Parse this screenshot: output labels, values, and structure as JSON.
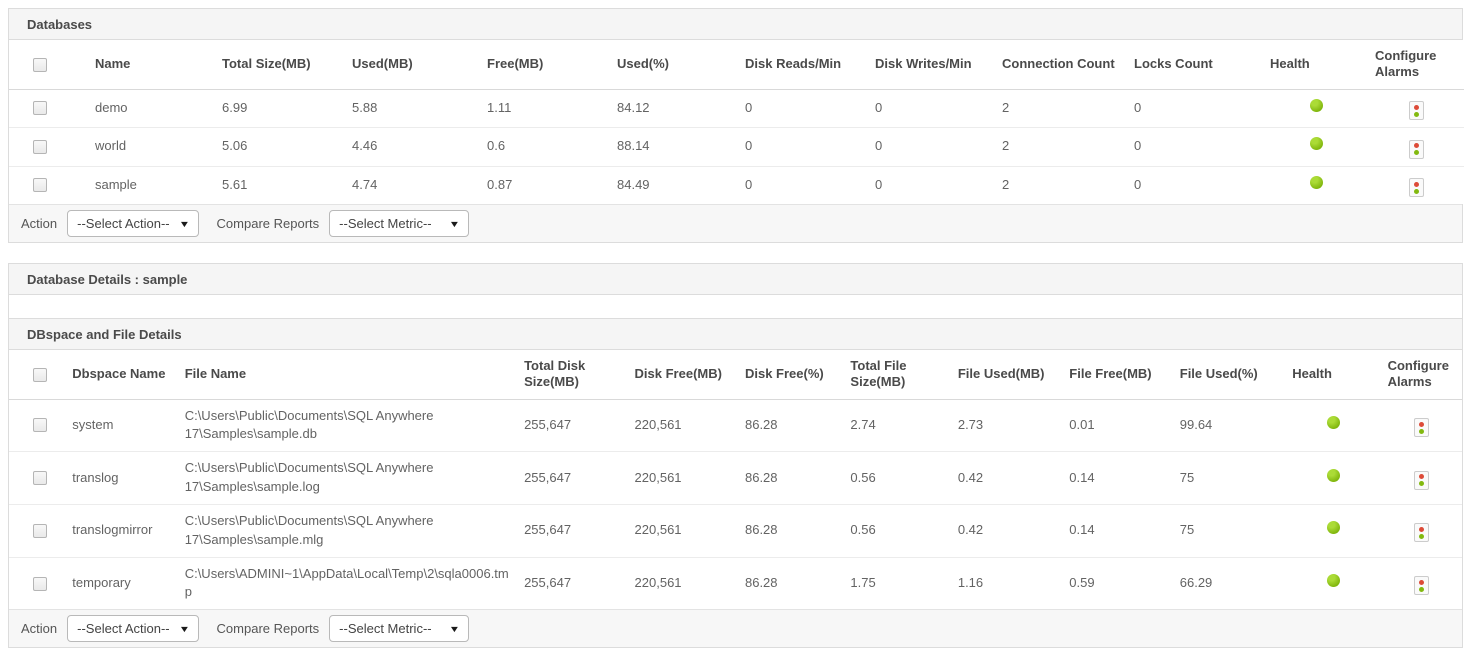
{
  "databases_panel": {
    "title": "Databases",
    "columns": [
      "Name",
      "Total Size(MB)",
      "Used(MB)",
      "Free(MB)",
      "Used(%)",
      "Disk Reads/Min",
      "Disk Writes/Min",
      "Connection Count",
      "Locks Count",
      "Health",
      "Configure Alarms"
    ],
    "rows": [
      {
        "name": "demo",
        "total_size": "6.99",
        "used": "5.88",
        "free": "1.11",
        "used_pct": "84.12",
        "disk_reads": "0",
        "disk_writes": "0",
        "connection_count": "2",
        "locks_count": "0",
        "health": "green"
      },
      {
        "name": "world",
        "total_size": "5.06",
        "used": "4.46",
        "free": "0.6",
        "used_pct": "88.14",
        "disk_reads": "0",
        "disk_writes": "0",
        "connection_count": "2",
        "locks_count": "0",
        "health": "green"
      },
      {
        "name": "sample",
        "total_size": "5.61",
        "used": "4.74",
        "free": "0.87",
        "used_pct": "84.49",
        "disk_reads": "0",
        "disk_writes": "0",
        "connection_count": "2",
        "locks_count": "0",
        "health": "green"
      }
    ],
    "action_bar": {
      "action_label": "Action",
      "action_value": "--Select Action--",
      "compare_label": "Compare Reports",
      "compare_value": "--Select Metric--"
    }
  },
  "details_panel": {
    "title": "Database Details : sample",
    "dbspace_section": {
      "title": "DBspace and File Details",
      "columns": [
        "Dbspace Name",
        "File Name",
        "Total Disk Size(MB)",
        "Disk Free(MB)",
        "Disk Free(%)",
        "Total File Size(MB)",
        "File Used(MB)",
        "File Free(MB)",
        "File Used(%)",
        "Health",
        "Configure Alarms"
      ],
      "rows": [
        {
          "dbspace_name": "system",
          "file_name": "C:\\Users\\Public\\Documents\\SQL Anywhere 17\\Samples\\sample.db",
          "total_disk_size": "255,647",
          "disk_free": "220,561",
          "disk_free_pct": "86.28",
          "total_file_size": "2.74",
          "file_used": "2.73",
          "file_free": "0.01",
          "file_used_pct": "99.64",
          "health": "green"
        },
        {
          "dbspace_name": "translog",
          "file_name": "C:\\Users\\Public\\Documents\\SQL Anywhere 17\\Samples\\sample.log",
          "total_disk_size": "255,647",
          "disk_free": "220,561",
          "disk_free_pct": "86.28",
          "total_file_size": "0.56",
          "file_used": "0.42",
          "file_free": "0.14",
          "file_used_pct": "75",
          "health": "green"
        },
        {
          "dbspace_name": "translogmirror",
          "file_name": "C:\\Users\\Public\\Documents\\SQL Anywhere 17\\Samples\\sample.mlg",
          "total_disk_size": "255,647",
          "disk_free": "220,561",
          "disk_free_pct": "86.28",
          "total_file_size": "0.56",
          "file_used": "0.42",
          "file_free": "0.14",
          "file_used_pct": "75",
          "health": "green"
        },
        {
          "dbspace_name": "temporary",
          "file_name": "C:\\Users\\ADMINI~1\\AppData\\Local\\Temp\\2\\sqla0006.tmp",
          "total_disk_size": "255,647",
          "disk_free": "220,561",
          "disk_free_pct": "86.28",
          "total_file_size": "1.75",
          "file_used": "1.16",
          "file_free": "0.59",
          "file_used_pct": "66.29",
          "health": "green"
        }
      ],
      "action_bar": {
        "action_label": "Action",
        "action_value": "--Select Action--",
        "compare_label": "Compare Reports",
        "compare_value": "--Select Metric--"
      }
    }
  },
  "colors": {
    "health_green": "#82b90f",
    "alarm_red": "#dd4b38",
    "header_bg": "#f5f5f5",
    "border": "#dcdcdc"
  }
}
